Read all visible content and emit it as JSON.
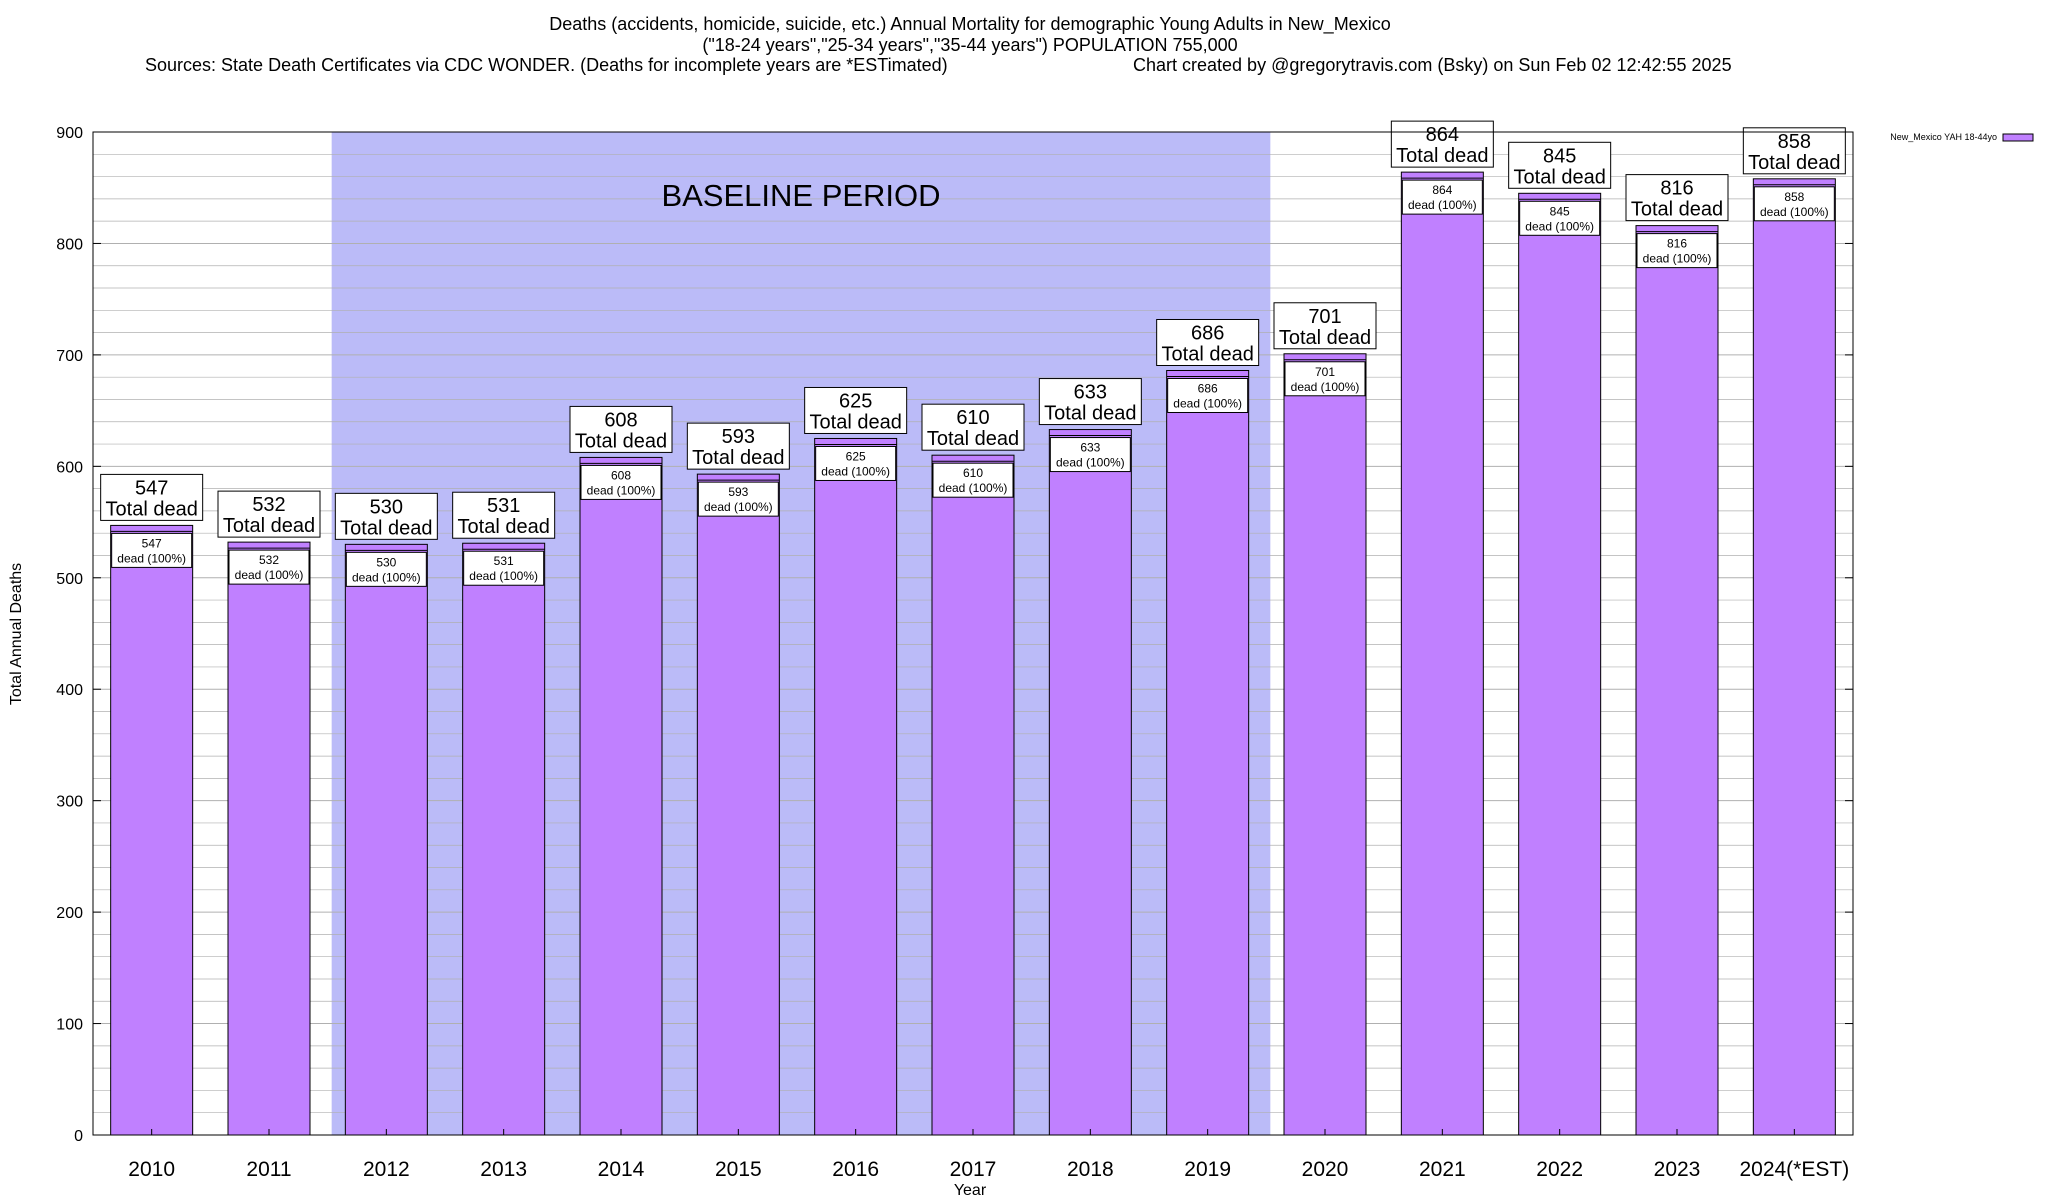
{
  "header": {
    "title_line1": "Deaths (accidents, homicide, suicide, etc.) Annual Mortality for demographic Young Adults in New_Mexico",
    "title_line2": "(\"18-24 years\",\"25-34 years\",\"35-44 years\") POPULATION 755,000",
    "sources": "Sources: State Death Certificates via CDC WONDER. (Deaths for incomplete years are *ESTimated)",
    "credit": "Chart created by @gregorytravis.com (Bsky) on Sun Feb 02 12:42:55 2025"
  },
  "chart_data": {
    "type": "bar",
    "categories": [
      "2010",
      "2011",
      "2012",
      "2013",
      "2014",
      "2015",
      "2016",
      "2017",
      "2018",
      "2019",
      "2020",
      "2021",
      "2022",
      "2023",
      "2024(*EST)"
    ],
    "series": [
      {
        "name": "New_Mexico YAH 18-44yo",
        "values": [
          547,
          532,
          530,
          531,
          608,
          593,
          625,
          610,
          633,
          686,
          701,
          864,
          845,
          816,
          858
        ]
      }
    ],
    "total_label": "Total dead",
    "inner_label": "dead (100%)",
    "xlabel": "Year",
    "ylabel": "Total Annual Deaths",
    "ylim": [
      0,
      900
    ],
    "yticks": [
      0,
      100,
      200,
      300,
      400,
      500,
      600,
      700,
      800,
      900
    ],
    "grid": true,
    "legend_position": "top-right",
    "baseline": {
      "label": "BASELINE PERIOD",
      "start": "2012",
      "end": "2019"
    },
    "colors": {
      "bar": "#c080ff",
      "baseline_band": "#bbbbf8",
      "grid": "#b0b0b0"
    }
  }
}
